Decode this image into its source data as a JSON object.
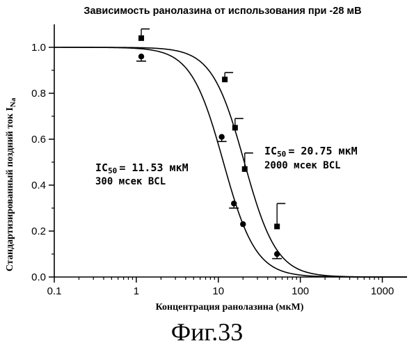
{
  "chart_data": {
    "type": "scatter",
    "title": "Зависимость ранолазина от использования при -28 мВ",
    "xlabel": "Концентрация ранолазина (мкМ)",
    "ylabel_main": "Стандартизированный поздний ток I",
    "ylabel_sub": "Na",
    "x_scale": "log",
    "xlim": [
      0.1,
      2000
    ],
    "ylim": [
      0.0,
      1.1
    ],
    "x_ticks": [
      0.1,
      1,
      10,
      100,
      1000
    ],
    "x_tick_labels": [
      "0.1",
      "1",
      "10",
      "100",
      "1000"
    ],
    "y_ticks": [
      0.0,
      0.2,
      0.4,
      0.6,
      0.8,
      1.0
    ],
    "y_tick_labels": [
      "0.0",
      "0.2",
      "0.4",
      "0.6",
      "0.8",
      "1.0"
    ],
    "grid": false,
    "series": [
      {
        "marker": "circle",
        "ic50": 11.53,
        "x": [
          1.15,
          11,
          15.5,
          20,
          52
        ],
        "y": [
          0.96,
          0.61,
          0.32,
          0.23,
          0.1
        ],
        "err_low": [
          0.02,
          0.02,
          0.02,
          0.0,
          0.02
        ],
        "err_high": [
          0.0,
          0.0,
          0.0,
          0.0,
          0.0
        ]
      },
      {
        "marker": "square",
        "ic50": 20.75,
        "x": [
          1.15,
          12,
          16,
          21,
          52
        ],
        "y": [
          1.04,
          0.86,
          0.65,
          0.47,
          0.22
        ],
        "err_low": [
          0.0,
          0.0,
          0.0,
          0.0,
          0.0
        ],
        "err_high": [
          0.04,
          0.03,
          0.04,
          0.07,
          0.1
        ]
      }
    ],
    "annotations": [
      {
        "id": "left",
        "ic_prefix": "IC",
        "ic_sub": "50",
        "ic_value": "= 11.53 мкМ",
        "line2": "300 мсек  BCL"
      },
      {
        "id": "right",
        "ic_prefix": "IC",
        "ic_sub": "50",
        "ic_value": "= 20.75  мкМ",
        "line2": "2000 мсек  BCL"
      }
    ]
  },
  "figure_caption": "Фиг.33"
}
